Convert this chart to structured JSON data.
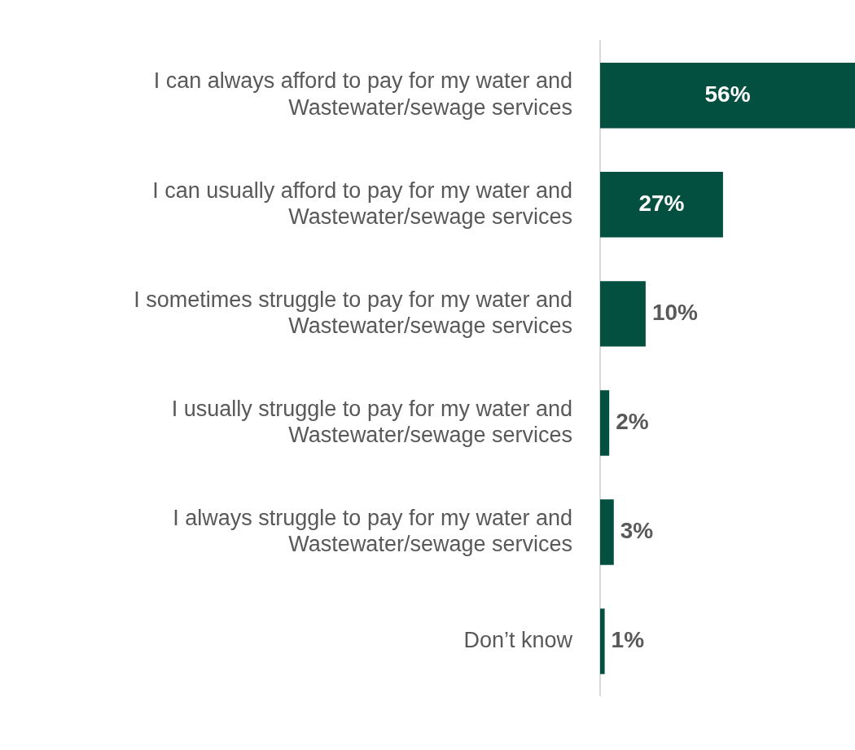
{
  "chart_data": {
    "type": "bar",
    "orientation": "horizontal",
    "categories": [
      "I can always afford to pay for my water and Wastewater/sewage services",
      "I can usually afford to pay for my water and Wastewater/sewage services",
      "I sometimes struggle to pay for my water and Wastewater/sewage services",
      "I usually struggle to pay for my water and Wastewater/sewage services",
      "I always struggle to pay for my water and Wastewater/sewage services",
      "Don’t know"
    ],
    "values": [
      56,
      27,
      10,
      2,
      3,
      1
    ],
    "value_labels": [
      "56%",
      "27%",
      "10%",
      "2%",
      "3%",
      "1%"
    ],
    "color": "#034f40",
    "xlim": [
      0,
      56
    ],
    "grid": false,
    "legend": false,
    "tick_labels": "y"
  }
}
